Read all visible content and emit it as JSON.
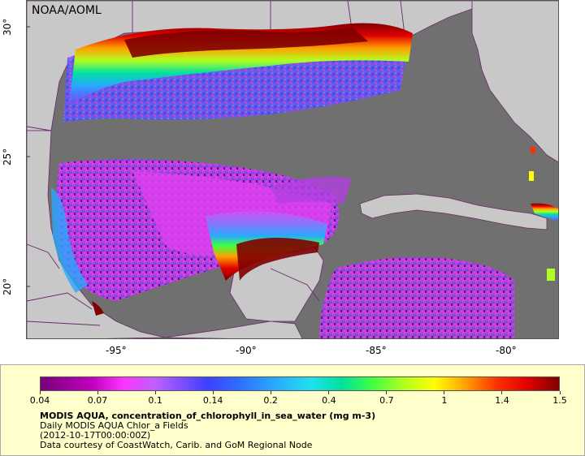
{
  "source_label": "NOAA/AOML",
  "latitude_labels": [
    "30°",
    "25°",
    "20°"
  ],
  "longitude_labels": [
    "-95°",
    "-90°",
    "-85°",
    "-80°"
  ],
  "colorbar": {
    "ticks": [
      "0.04",
      "0.07",
      "0.1",
      "0.14",
      "0.2",
      "0.4",
      "0.7",
      "1",
      "1.4",
      "1.5"
    ],
    "scale": "log",
    "range": [
      0.04,
      1.5
    ]
  },
  "caption": {
    "title": "MODIS AQUA, concentration_of_chlorophyll_in_sea_water (mg m-3)",
    "line2": "Daily MODIS AQUA Chlor_a Fields",
    "line3": "(2012-10-17T00:00:00Z)",
    "line4": "Data courtesy of CoastWatch, Carib. and GoM Regional Node"
  },
  "colors": {
    "land": "#c8c8c8",
    "no_data_ocean": "#707070",
    "legend_background": "#ffffcc",
    "boundaries": "#6a2a6a"
  }
}
